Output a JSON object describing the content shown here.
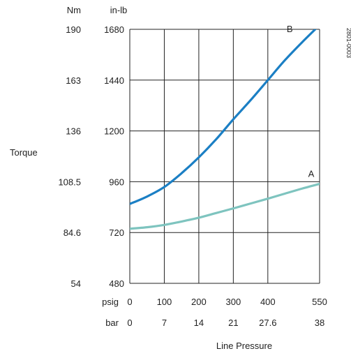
{
  "chart_data": {
    "type": "line",
    "title": "",
    "xlabel": "Line Pressure",
    "ylabel": "Torque",
    "xlim": [
      0,
      550
    ],
    "ylim_in_lb": [
      480,
      1680
    ],
    "grid": true,
    "x_axes": [
      {
        "unit": "psig",
        "ticks": [
          {
            "v": 0,
            "label": "0"
          },
          {
            "v": 100,
            "label": "100"
          },
          {
            "v": 200,
            "label": "200"
          },
          {
            "v": 300,
            "label": "300"
          },
          {
            "v": 400,
            "label": "400"
          },
          {
            "v": 550,
            "label": "550"
          }
        ]
      },
      {
        "unit": "bar",
        "ticks": [
          {
            "v": 0,
            "label": "0"
          },
          {
            "v": 100,
            "label": "7"
          },
          {
            "v": 200,
            "label": "14"
          },
          {
            "v": 300,
            "label": "21"
          },
          {
            "v": 400,
            "label": "27.6"
          },
          {
            "v": 550,
            "label": "38"
          }
        ]
      }
    ],
    "y_axes": [
      {
        "unit": "Nm",
        "ticks": [
          {
            "v": 480,
            "label": "54"
          },
          {
            "v": 720,
            "label": "84.6"
          },
          {
            "v": 960,
            "label": "108.5"
          },
          {
            "v": 1200,
            "label": "136"
          },
          {
            "v": 1440,
            "label": "163"
          },
          {
            "v": 1680,
            "label": "190"
          }
        ]
      },
      {
        "unit": "in-lb",
        "ticks": [
          {
            "v": 480,
            "label": "480"
          },
          {
            "v": 720,
            "label": "720"
          },
          {
            "v": 960,
            "label": "960"
          },
          {
            "v": 1200,
            "label": "1200"
          },
          {
            "v": 1440,
            "label": "1440"
          },
          {
            "v": 1680,
            "label": "1680"
          }
        ]
      }
    ],
    "series": [
      {
        "name": "A",
        "color": "#7ec4bf",
        "x": [
          0,
          50,
          100,
          150,
          200,
          250,
          300,
          350,
          400,
          450,
          500,
          550
        ],
        "y": [
          738,
          745,
          756,
          772,
          790,
          812,
          834,
          857,
          880,
          904,
          928,
          950
        ]
      },
      {
        "name": "B",
        "color": "#1b7fc4",
        "x": [
          0,
          50,
          100,
          150,
          200,
          250,
          300,
          350,
          400,
          450,
          500,
          550
        ],
        "y": [
          855,
          890,
          935,
          1000,
          1075,
          1160,
          1255,
          1345,
          1440,
          1535,
          1620,
          1700
        ]
      }
    ],
    "figure_code": "2801-0003"
  }
}
